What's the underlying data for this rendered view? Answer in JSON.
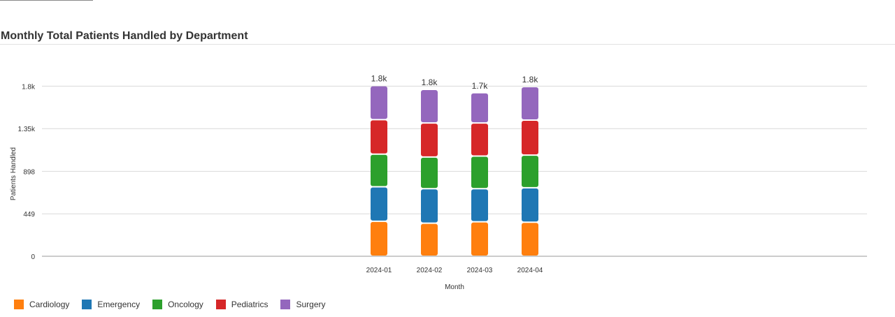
{
  "page_title": "Monthly Total Patients Handled by Department",
  "chart_data": {
    "type": "bar",
    "stacked": true,
    "title": "Monthly Total Patients Handled by Department",
    "xlabel": "Month",
    "ylabel": "Patients Handled",
    "categories": [
      "2024-01",
      "2024-02",
      "2024-03",
      "2024-04"
    ],
    "ylim": [
      0,
      1795
    ],
    "yticks": [
      0,
      449,
      898,
      1350,
      1800
    ],
    "ytick_labels": [
      "0",
      "449",
      "898",
      "1.35k",
      "1.8k"
    ],
    "total_labels": [
      "1.8k",
      "1.8k",
      "1.7k",
      "1.8k"
    ],
    "grid": true,
    "legend_position": "bottom-left",
    "series": [
      {
        "name": "Cardiology",
        "color": "#ff7f0e",
        "values": [
          370,
          350,
          365,
          360
        ]
      },
      {
        "name": "Emergency",
        "color": "#1f77b4",
        "values": [
          365,
          365,
          350,
          365
        ]
      },
      {
        "name": "Oncology",
        "color": "#2ca02c",
        "values": [
          345,
          335,
          345,
          345
        ]
      },
      {
        "name": "Pediatrics",
        "color": "#d62728",
        "values": [
          365,
          360,
          350,
          370
        ]
      },
      {
        "name": "Surgery",
        "color": "#9467bd",
        "values": [
          360,
          355,
          320,
          355
        ]
      }
    ]
  }
}
